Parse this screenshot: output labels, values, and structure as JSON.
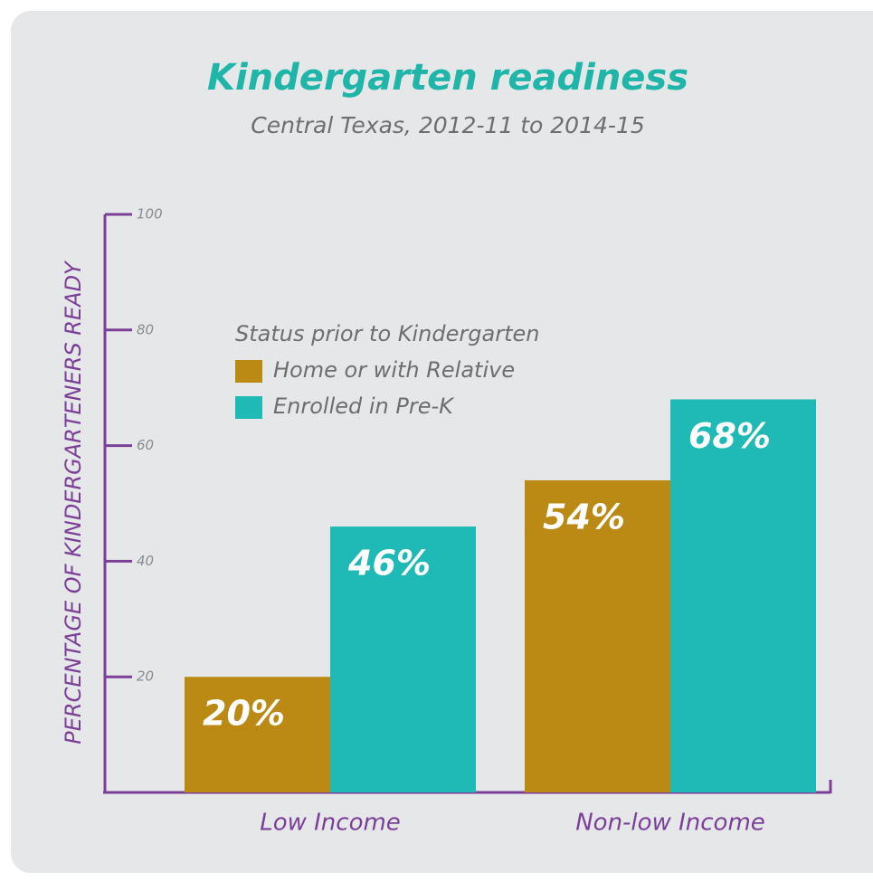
{
  "chart_data": {
    "type": "bar",
    "title": "Kindergarten readiness",
    "subtitle": "Central Texas, 2012-11 to 2014-15",
    "y_label": "PERCENTAGE OF KINDERGARTENERS READY",
    "legend_title": "Status prior to Kindergarten",
    "categories": [
      "Low Income",
      "Non-low Income"
    ],
    "series": [
      {
        "name": "Home or with Relative",
        "color": "#bb8a15",
        "values": [
          20,
          54
        ],
        "value_labels": [
          "20%",
          "54%"
        ]
      },
      {
        "name": "Enrolled in Pre-K",
        "color": "#1fbab5",
        "values": [
          46,
          68
        ],
        "value_labels": [
          "46%",
          "68%"
        ]
      }
    ],
    "ylim": [
      0,
      100
    ],
    "yticks": [
      20,
      40,
      60,
      80,
      100
    ]
  }
}
